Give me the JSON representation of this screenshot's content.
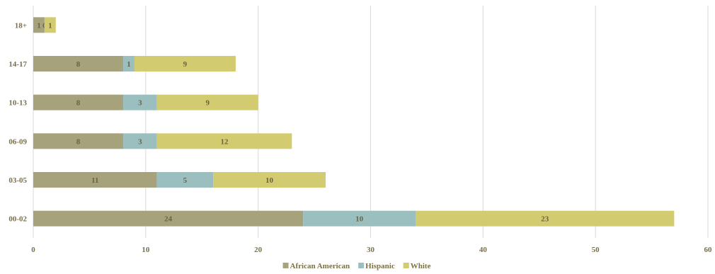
{
  "chart_data": {
    "type": "bar",
    "orientation": "horizontal",
    "stacked": true,
    "categories": [
      "00-02",
      "03-05",
      "06-09",
      "10-13",
      "14-17",
      "18+"
    ],
    "series": [
      {
        "name": "African American",
        "color": "#a6a27c",
        "values": [
          24,
          11,
          8,
          8,
          8,
          1
        ]
      },
      {
        "name": "Hispanic",
        "color": "#9bbfbf",
        "values": [
          10,
          5,
          3,
          3,
          1,
          0
        ]
      },
      {
        "name": "White",
        "color": "#d3cb6f",
        "values": [
          23,
          10,
          12,
          9,
          9,
          1
        ]
      }
    ],
    "xlim": [
      0,
      60
    ],
    "xticks": [
      0,
      10,
      20,
      30,
      40,
      50,
      60
    ],
    "grid": true,
    "legend": "bottom",
    "title": "",
    "xlabel": "",
    "ylabel": ""
  }
}
